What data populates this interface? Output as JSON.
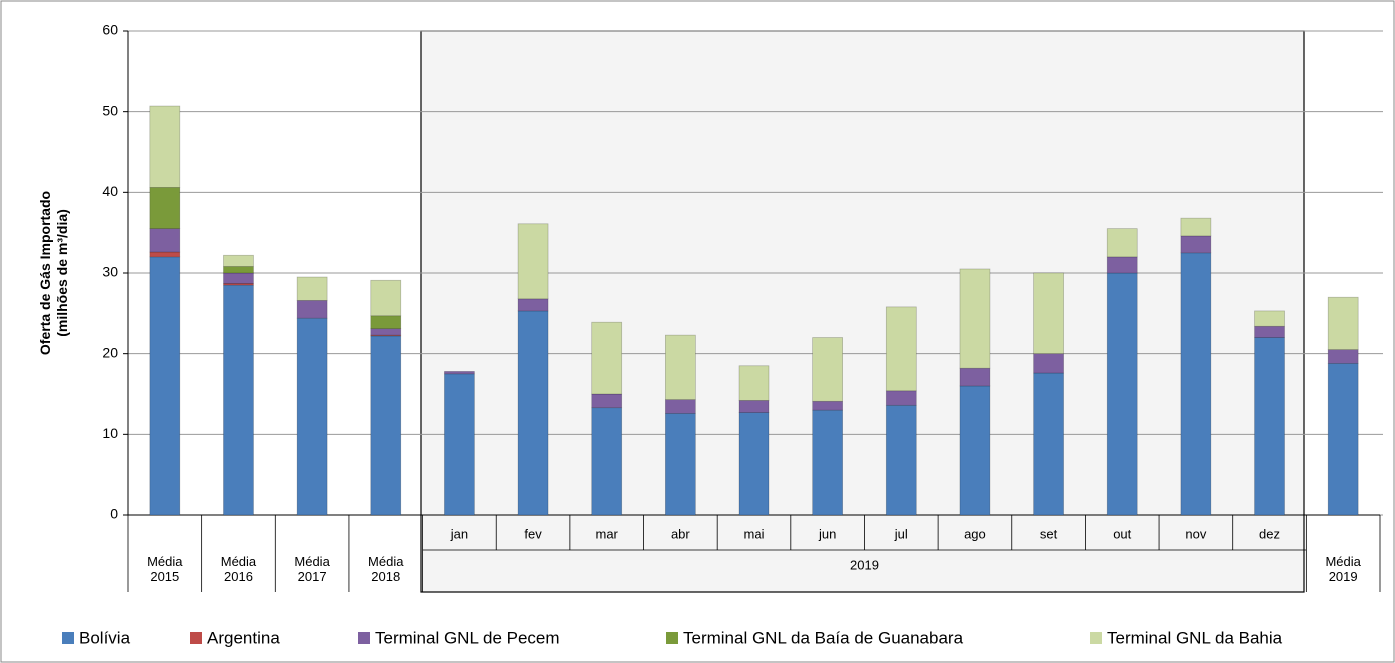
{
  "chart_data": {
    "type": "stacked-bar",
    "y_label_lines": [
      "Oferta de Gás Importado",
      "(milhões de m³/dia)"
    ],
    "categories": [
      "Média 2015",
      "Média 2016",
      "Média 2017",
      "Média 2018",
      "jan",
      "fev",
      "mar",
      "abr",
      "mai",
      "jun",
      "jul",
      "ago",
      "set",
      "out",
      "nov",
      "dez",
      "Média 2019"
    ],
    "group_label": "2019",
    "series": [
      {
        "name": "Bolívia",
        "color": "#4a7ebb",
        "values": [
          32.0,
          28.5,
          24.4,
          22.2,
          17.5,
          25.3,
          13.3,
          12.6,
          12.7,
          13.0,
          13.6,
          16.0,
          17.6,
          30.0,
          32.5,
          22.0,
          18.8
        ]
      },
      {
        "name": "Argentina",
        "color": "#be4b48",
        "values": [
          0.6,
          0.2,
          0,
          0.1,
          0,
          0,
          0,
          0,
          0,
          0,
          0,
          0,
          0,
          0,
          0,
          0,
          0
        ]
      },
      {
        "name": "Terminal GNL de Pecem",
        "color": "#7d60a0",
        "values": [
          2.9,
          1.3,
          2.2,
          0.8,
          0.3,
          1.5,
          1.7,
          1.7,
          1.5,
          1.1,
          1.8,
          2.2,
          2.4,
          2.0,
          2.1,
          1.4,
          1.7
        ]
      },
      {
        "name": "Terminal GNL da Baía de Guanabara",
        "color": "#7a9a3a",
        "values": [
          5.1,
          0.8,
          0,
          1.6,
          0,
          0,
          0,
          0,
          0,
          0,
          0,
          0,
          0,
          0,
          0,
          0,
          0
        ]
      },
      {
        "name": "Terminal GNL da Bahia",
        "color": "#cbd9a3",
        "values": [
          10.1,
          1.4,
          2.9,
          4.4,
          0,
          9.3,
          8.9,
          8.0,
          4.3,
          7.9,
          10.4,
          12.3,
          10.0,
          3.5,
          2.2,
          1.9,
          6.5
        ]
      }
    ],
    "ylim": [
      0,
      60
    ],
    "yticks": [
      0,
      10,
      20,
      30,
      40,
      50,
      60
    ],
    "grid": true
  }
}
